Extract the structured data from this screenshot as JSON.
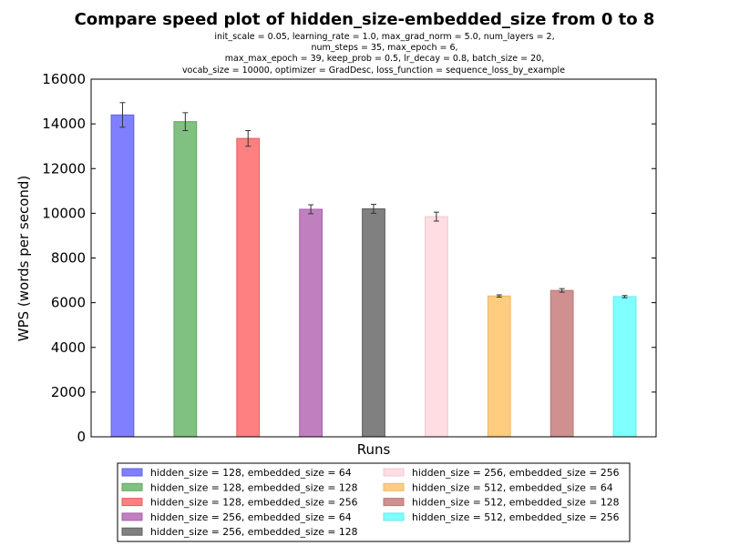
{
  "chart_data": {
    "type": "bar",
    "title": "Compare speed plot of hidden_size-embedded_size from 0 to 8",
    "subtitle_lines": [
      "init_scale = 0.05, learning_rate = 1.0, max_grad_norm = 5.0, num_layers = 2,",
      "num_steps = 35, max_epoch = 6,",
      "max_max_epoch = 39, keep_prob = 0.5, lr_decay = 0.8, batch_size = 20,",
      "vocab_size = 10000, optimizer = GradDesc, loss_function = sequence_loss_by_example"
    ],
    "xlabel": "Runs",
    "ylabel": "WPS (words per second)",
    "ylim": [
      0,
      16000
    ],
    "yticks": [
      0,
      2000,
      4000,
      6000,
      8000,
      10000,
      12000,
      14000,
      16000
    ],
    "grid": false,
    "legend_position": "bottom-center",
    "series": [
      {
        "name": "hidden_size = 128, embedded_size = 64",
        "value": 14400,
        "error": 550,
        "color": "#8080ff",
        "edge": "#6060e0"
      },
      {
        "name": "hidden_size = 128, embedded_size = 128",
        "value": 14100,
        "error": 400,
        "color": "#80c080",
        "edge": "#60a860"
      },
      {
        "name": "hidden_size = 128, embedded_size = 256",
        "value": 13350,
        "error": 350,
        "color": "#ff8080",
        "edge": "#e06060"
      },
      {
        "name": "hidden_size = 256, embedded_size = 64",
        "value": 10180,
        "error": 200,
        "color": "#c080c0",
        "edge": "#a860a8"
      },
      {
        "name": "hidden_size = 256, embedded_size = 128",
        "value": 10200,
        "error": 200,
        "color": "#808080",
        "edge": "#606060"
      },
      {
        "name": "hidden_size = 256, embedded_size = 256",
        "value": 9850,
        "error": 200,
        "color": "#ffdde3",
        "edge": "#f0c8d0"
      },
      {
        "name": "hidden_size = 512, embedded_size = 64",
        "value": 6300,
        "error": 50,
        "color": "#ffcc80",
        "edge": "#f0b860"
      },
      {
        "name": "hidden_size = 512, embedded_size = 128",
        "value": 6550,
        "error": 80,
        "color": "#d09090",
        "edge": "#b87878"
      },
      {
        "name": "hidden_size = 512, embedded_size = 256",
        "value": 6270,
        "error": 50,
        "color": "#80ffff",
        "edge": "#60e8e8"
      }
    ]
  }
}
